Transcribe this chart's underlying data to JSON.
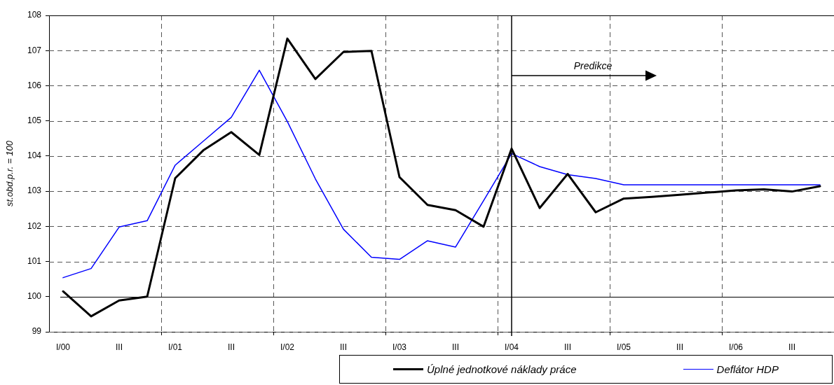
{
  "chart_data": {
    "type": "line",
    "categories": [
      "I/00",
      null,
      "III",
      null,
      "I/01",
      null,
      "III",
      null,
      "I/02",
      null,
      "III",
      null,
      "I/03",
      null,
      "III",
      null,
      "I/04",
      null,
      "III",
      null,
      "I/05",
      null,
      "III",
      null,
      "I/06",
      null,
      "III",
      null
    ],
    "ylabel": "st.obd.p.r. = 100",
    "ylim": [
      99,
      108
    ],
    "yticks": [
      99,
      100,
      101,
      102,
      103,
      104,
      105,
      106,
      107,
      108
    ],
    "grid": true,
    "legend": "bottom right",
    "series": [
      {
        "name": "Úplné jednotkové náklady práce",
        "color": "#000000",
        "values": [
          100.15,
          99.44,
          99.89,
          100.0,
          103.37,
          104.16,
          104.68,
          104.03,
          107.34,
          106.19,
          106.96,
          106.99,
          103.4,
          102.61,
          102.46,
          101.99,
          104.21,
          102.52,
          103.49,
          102.4,
          102.79,
          102.84,
          102.9,
          102.96,
          103.02,
          103.05,
          102.99,
          103.14
        ]
      },
      {
        "name": "Deflátor HDP",
        "color": "#0000ff",
        "values": [
          100.54,
          100.8,
          101.98,
          102.16,
          103.74,
          104.42,
          105.1,
          106.44,
          104.98,
          103.35,
          101.92,
          101.12,
          101.06,
          101.59,
          101.41,
          102.73,
          104.07,
          103.7,
          103.47,
          103.36,
          103.18,
          103.18,
          103.18,
          103.18,
          103.18,
          103.18,
          103.18,
          103.18
        ]
      }
    ],
    "ref_lines": [
      {
        "axis": "y",
        "value": 100,
        "color": "#000000"
      },
      {
        "axis": "x",
        "value": "I/04",
        "color": "#000000"
      }
    ],
    "annotations": [
      "Predikce"
    ]
  }
}
